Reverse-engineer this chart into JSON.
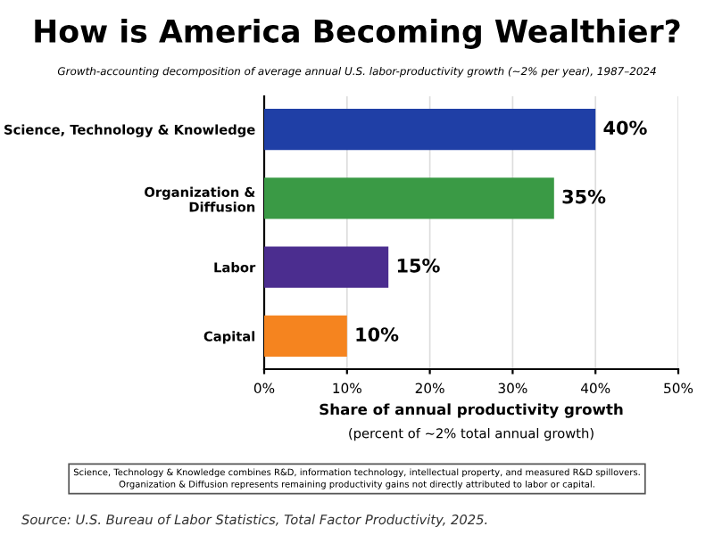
{
  "chart_data": {
    "type": "bar",
    "orientation": "horizontal",
    "title": "How is America Becoming Wealthier?",
    "subtitle": "Growth-accounting decomposition of average annual U.S. labor-productivity growth (~2% per year), 1987–2024",
    "categories": [
      "Science, Technology & Knowledge",
      "Organization &\nDiffusion",
      "Labor",
      "Capital"
    ],
    "values": [
      40,
      35,
      15,
      10
    ],
    "colors": [
      "#1f3fa6",
      "#3a9a45",
      "#4b2d8f",
      "#f5841f"
    ],
    "value_labels": [
      "40%",
      "35%",
      "15%",
      "10%"
    ],
    "xlim": [
      0,
      50
    ],
    "xticks": [
      {
        "value": 0,
        "label": "0%"
      },
      {
        "value": 10,
        "label": "10%"
      },
      {
        "value": 20,
        "label": "20%"
      },
      {
        "value": 30,
        "label": "30%"
      },
      {
        "value": 40,
        "label": "40%"
      },
      {
        "value": 50,
        "label": "50%"
      }
    ],
    "xlabel": "Share of annual productivity growth",
    "grid": "x",
    "annotations": [
      "(percent of ~2% total annual growth)",
      "Science, Technology & Knowledge combines R&D, information technology, intellectual property, and measured R&D spillovers.\nOrganization & Diffusion represents remaining productivity gains not directly attributed to labor or capital.",
      "Source: U.S. Bureau of Labor Statistics, Total Factor Productivity, 2025."
    ]
  }
}
